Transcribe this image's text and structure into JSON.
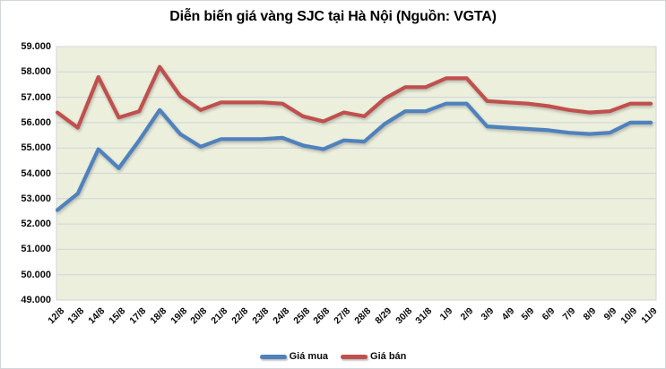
{
  "title": "Diễn biến giá vàng SJC tại Hà Nội (Nguồn: VGTA)",
  "colors": {
    "buy_line": "#4F81BD",
    "sell_line": "#C0504D",
    "plot_background": "#EBEFDC",
    "gridline": "#CFD5DB",
    "axis_text": "#000000",
    "frame_border": "#D3D6DA"
  },
  "chart_data": {
    "type": "line",
    "title": "Diễn biến giá vàng SJC tại Hà Nội (Nguồn: VGTA)",
    "categories": [
      "12/8",
      "13/8",
      "14/8",
      "15/8",
      "17/8",
      "18/8",
      "19/8",
      "20/8",
      "21/8",
      "22/8",
      "23/8",
      "24/8",
      "25/8",
      "26/8",
      "27/8",
      "28/8",
      "8/29",
      "30/8",
      "31/8",
      "1/9",
      "2/9",
      "3/9",
      "4/9",
      "5/9",
      "6/9",
      "7/9",
      "8/9",
      "9/9",
      "10/9",
      "11/9"
    ],
    "series": [
      {
        "name": "Giá mua",
        "color": "#4F81BD",
        "values": [
          52.55,
          53.2,
          54.95,
          54.2,
          55.3,
          56.5,
          55.55,
          55.05,
          55.35,
          55.35,
          55.35,
          55.4,
          55.1,
          54.95,
          55.3,
          55.25,
          55.95,
          56.45,
          56.45,
          56.75,
          56.75,
          55.85,
          55.8,
          55.75,
          55.7,
          55.6,
          55.55,
          55.6,
          56.0,
          56.0
        ]
      },
      {
        "name": "Giá bán",
        "color": "#C0504D",
        "values": [
          56.4,
          55.8,
          57.8,
          56.2,
          56.45,
          58.2,
          57.05,
          56.5,
          56.8,
          56.8,
          56.8,
          56.75,
          56.25,
          56.05,
          56.4,
          56.25,
          56.95,
          57.4,
          57.4,
          57.75,
          57.75,
          56.85,
          56.8,
          56.75,
          56.65,
          56.5,
          56.4,
          56.45,
          56.75,
          56.75
        ]
      }
    ],
    "ylim": [
      49,
      59
    ],
    "y_step": 1,
    "y_tick_labels": [
      "59.000",
      "58.000",
      "57.000",
      "56.000",
      "55.000",
      "54.000",
      "53.000",
      "52.000",
      "51.000",
      "50.000",
      "49.000"
    ],
    "grid": true,
    "legend_position": "bottom"
  }
}
